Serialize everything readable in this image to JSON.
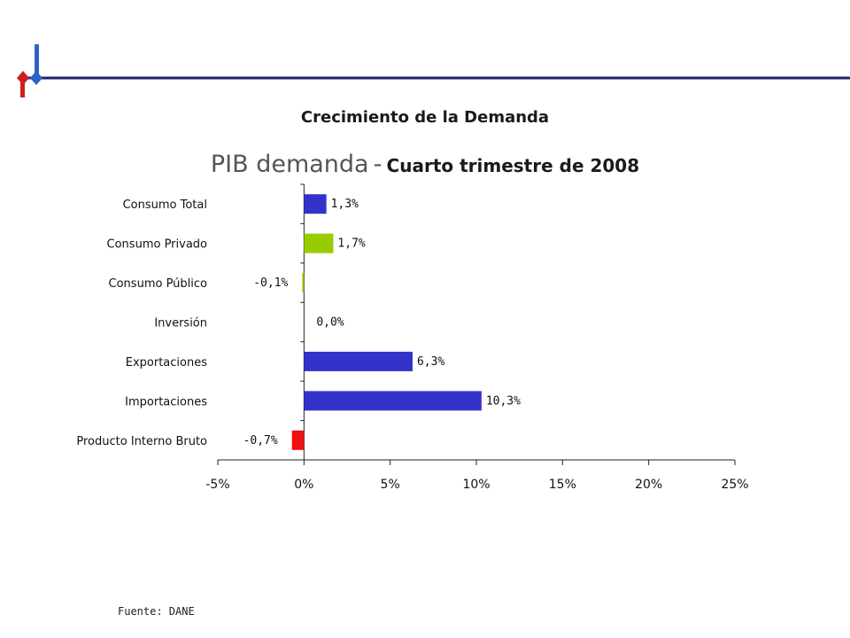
{
  "header": {
    "heading": "Crecimiento de la Demanda",
    "title_main": "PIB demanda",
    "title_sep": "-",
    "title_sub": "Cuarto trimestre de 2008"
  },
  "colors": {
    "accent_line": "#1f1f6e",
    "logo_red": "#cc1f1f",
    "logo_blue": "#2a64c8"
  },
  "chart_data": {
    "type": "bar",
    "orientation": "horizontal",
    "categories": [
      "Consumo Total",
      "Consumo Privado",
      "Consumo Público",
      "Inversión",
      "Exportaciones",
      "Importaciones",
      "Producto Interno Bruto"
    ],
    "values": [
      1.3,
      1.7,
      -0.1,
      0.0,
      6.3,
      10.3,
      -0.7
    ],
    "data_labels": [
      "1,3%",
      "1,7%",
      "-0,1%",
      "0,0%",
      "6,3%",
      "10,3%",
      "-0,7%"
    ],
    "bar_colors": [
      "#3333cc",
      "#99cc00",
      "#99cc00",
      "#3333cc",
      "#3333cc",
      "#3333cc",
      "#ee1111"
    ],
    "xlim": [
      -5,
      25
    ],
    "xticks": [
      -5,
      0,
      5,
      10,
      15,
      20,
      25
    ],
    "xtick_labels": [
      "-5%",
      "0%",
      "5%",
      "10%",
      "15%",
      "20%",
      "25%"
    ],
    "grid": false,
    "legend": "none"
  },
  "footer": {
    "source": "Fuente: DANE"
  }
}
